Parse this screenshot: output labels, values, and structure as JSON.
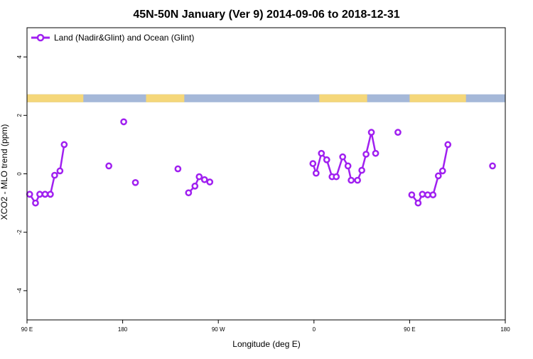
{
  "chart_data": {
    "type": "line",
    "title": "45N-50N January (Ver 9)   2014-09-06 to 2018-12-31",
    "xlabel": "Longitude (deg E)",
    "ylabel": "XCO2 - MLO trend (ppm)",
    "xlim": [
      90,
      540
    ],
    "ylim": [
      -5,
      5
    ],
    "x_ticks": [
      {
        "value": 90,
        "label": "90 E"
      },
      {
        "value": 180,
        "label": "180"
      },
      {
        "value": 270,
        "label": "90 W"
      },
      {
        "value": 360,
        "label": "0"
      },
      {
        "value": 450,
        "label": "90 E"
      },
      {
        "value": 540,
        "label": "180"
      }
    ],
    "y_ticks": [
      -4,
      -2,
      0,
      2,
      4
    ],
    "grid": false,
    "legend_position": "top-left",
    "series_color": "#a020f0",
    "land_color": "#f5d77a",
    "ocean_color": "#a5b8d8",
    "series": [
      {
        "name": "Land (Nadir&Glint) and Ocean (Glint)",
        "segments": [
          [
            [
              92.5,
              -0.7
            ],
            [
              98,
              -1.0
            ],
            [
              102,
              -0.7
            ],
            [
              107,
              -0.7
            ],
            [
              112,
              -0.7
            ],
            [
              116,
              -0.05
            ],
            [
              121,
              0.1
            ],
            [
              125,
              1.0
            ]
          ],
          [
            [
              167,
              0.27
            ]
          ],
          [
            [
              181,
              1.78
            ]
          ],
          [
            [
              192,
              -0.3
            ]
          ],
          [
            [
              232,
              0.17
            ]
          ],
          [
            [
              242,
              -0.65
            ],
            [
              248,
              -0.42
            ],
            [
              252,
              -0.1
            ],
            [
              257,
              -0.2
            ],
            [
              262,
              -0.28
            ]
          ],
          [
            [
              359,
              0.35
            ],
            [
              362,
              0.02
            ],
            [
              367,
              0.7
            ],
            [
              372,
              0.48
            ],
            [
              377,
              -0.1
            ],
            [
              381,
              -0.1
            ],
            [
              387,
              0.58
            ],
            [
              392,
              0.27
            ],
            [
              395,
              -0.22
            ],
            [
              401,
              -0.22
            ],
            [
              405,
              0.12
            ],
            [
              409,
              0.67
            ],
            [
              414,
              1.42
            ],
            [
              418,
              0.7
            ]
          ],
          [
            [
              439,
              1.42
            ]
          ],
          [
            [
              452,
              -0.72
            ],
            [
              458,
              -1.0
            ],
            [
              462,
              -0.7
            ],
            [
              467,
              -0.72
            ],
            [
              472,
              -0.72
            ],
            [
              477,
              -0.07
            ],
            [
              481,
              0.1
            ],
            [
              486,
              1.0
            ]
          ],
          [
            [
              528,
              0.27
            ]
          ]
        ]
      }
    ],
    "surface_band": {
      "y_range": [
        2.45,
        2.72
      ],
      "land_lon_ranges": [
        [
          90,
          143
        ],
        [
          202,
          238
        ],
        [
          365,
          410
        ],
        [
          450,
          503
        ]
      ]
    }
  }
}
